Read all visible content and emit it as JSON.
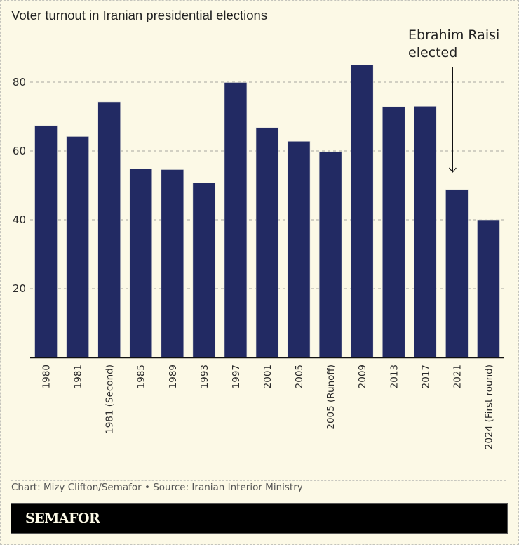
{
  "title": "Voter turnout in Iranian presidential elections",
  "source": "Chart: Mizy Clifton/Semafor • Source: Iranian Interior Ministry",
  "logo": "SEMAFOR",
  "colors": {
    "bar": "#222a63",
    "background": "#fcf9e6",
    "grid": "#a8a8a0",
    "axis": "#111111"
  },
  "chart_data": {
    "type": "bar",
    "title": "Voter turnout in Iranian presidential elections",
    "xlabel": "",
    "ylabel": "",
    "ylim": [
      0,
      90
    ],
    "yticks": [
      20,
      40,
      60,
      80
    ],
    "grid": true,
    "categories": [
      "1980",
      "1981",
      "1981 (Second)",
      "1985",
      "1989",
      "1993",
      "1997",
      "2001",
      "2005",
      "2005 (Runoff)",
      "2009",
      "2013",
      "2017",
      "2021",
      "2024 (First round)"
    ],
    "values": [
      67.4,
      64.2,
      74.3,
      54.8,
      54.6,
      50.7,
      79.9,
      66.8,
      62.8,
      59.8,
      85.0,
      72.9,
      73.0,
      48.8,
      40.0
    ],
    "annotations": [
      {
        "text": [
          "Ebrahim Raisi",
          "elected"
        ],
        "target_category": "2021",
        "arrow": "down"
      }
    ],
    "legend": "none"
  }
}
